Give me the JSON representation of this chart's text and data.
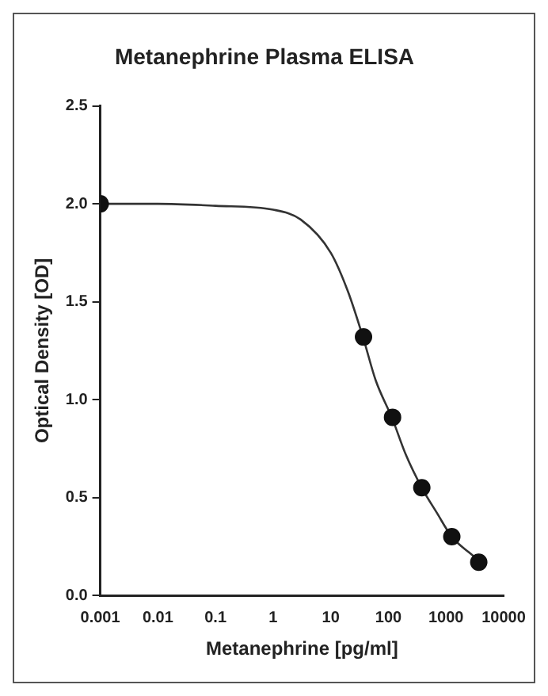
{
  "chart_data": {
    "type": "scatter",
    "title": "Metanephrine Plasma ELISA",
    "xlabel": "Metanephrine [pg/ml]",
    "ylabel": "Optical Density [OD]",
    "x": [
      0.001,
      37,
      118,
      380,
      1260,
      3700
    ],
    "series": [
      {
        "type": "scatter",
        "color": "#111111",
        "values": [
          2.0,
          1.32,
          0.91,
          0.55,
          0.3,
          0.17
        ]
      },
      {
        "type": "line",
        "marker": "none",
        "color": "#333333",
        "x": [
          0.001,
          0.01,
          0.1,
          1,
          3,
          10,
          20,
          37,
          60,
          118,
          200,
          380,
          700,
          1260,
          2500,
          3700
        ],
        "values": [
          2.0,
          2.0,
          1.99,
          1.97,
          1.92,
          1.75,
          1.55,
          1.31,
          1.1,
          0.9,
          0.72,
          0.55,
          0.42,
          0.3,
          0.22,
          0.18
        ]
      }
    ],
    "log": "x",
    "xlim": [
      0.001,
      10000
    ],
    "xticks": [
      0.001,
      0.01,
      0.1,
      1,
      10,
      100,
      1000,
      10000
    ],
    "ylim": [
      0,
      2.5
    ],
    "yticks": [
      {
        "value": 0,
        "label": "0.0"
      },
      {
        "value": 0.5,
        "label": "0.5"
      },
      {
        "value": 1,
        "label": "1.0"
      },
      {
        "value": 1.5,
        "label": "1.5"
      },
      {
        "value": 2,
        "label": "2.0"
      },
      {
        "value": 2.5,
        "label": "2.5"
      }
    ],
    "grid": false,
    "legend": false,
    "marker": "circle",
    "line_style": "solid"
  }
}
